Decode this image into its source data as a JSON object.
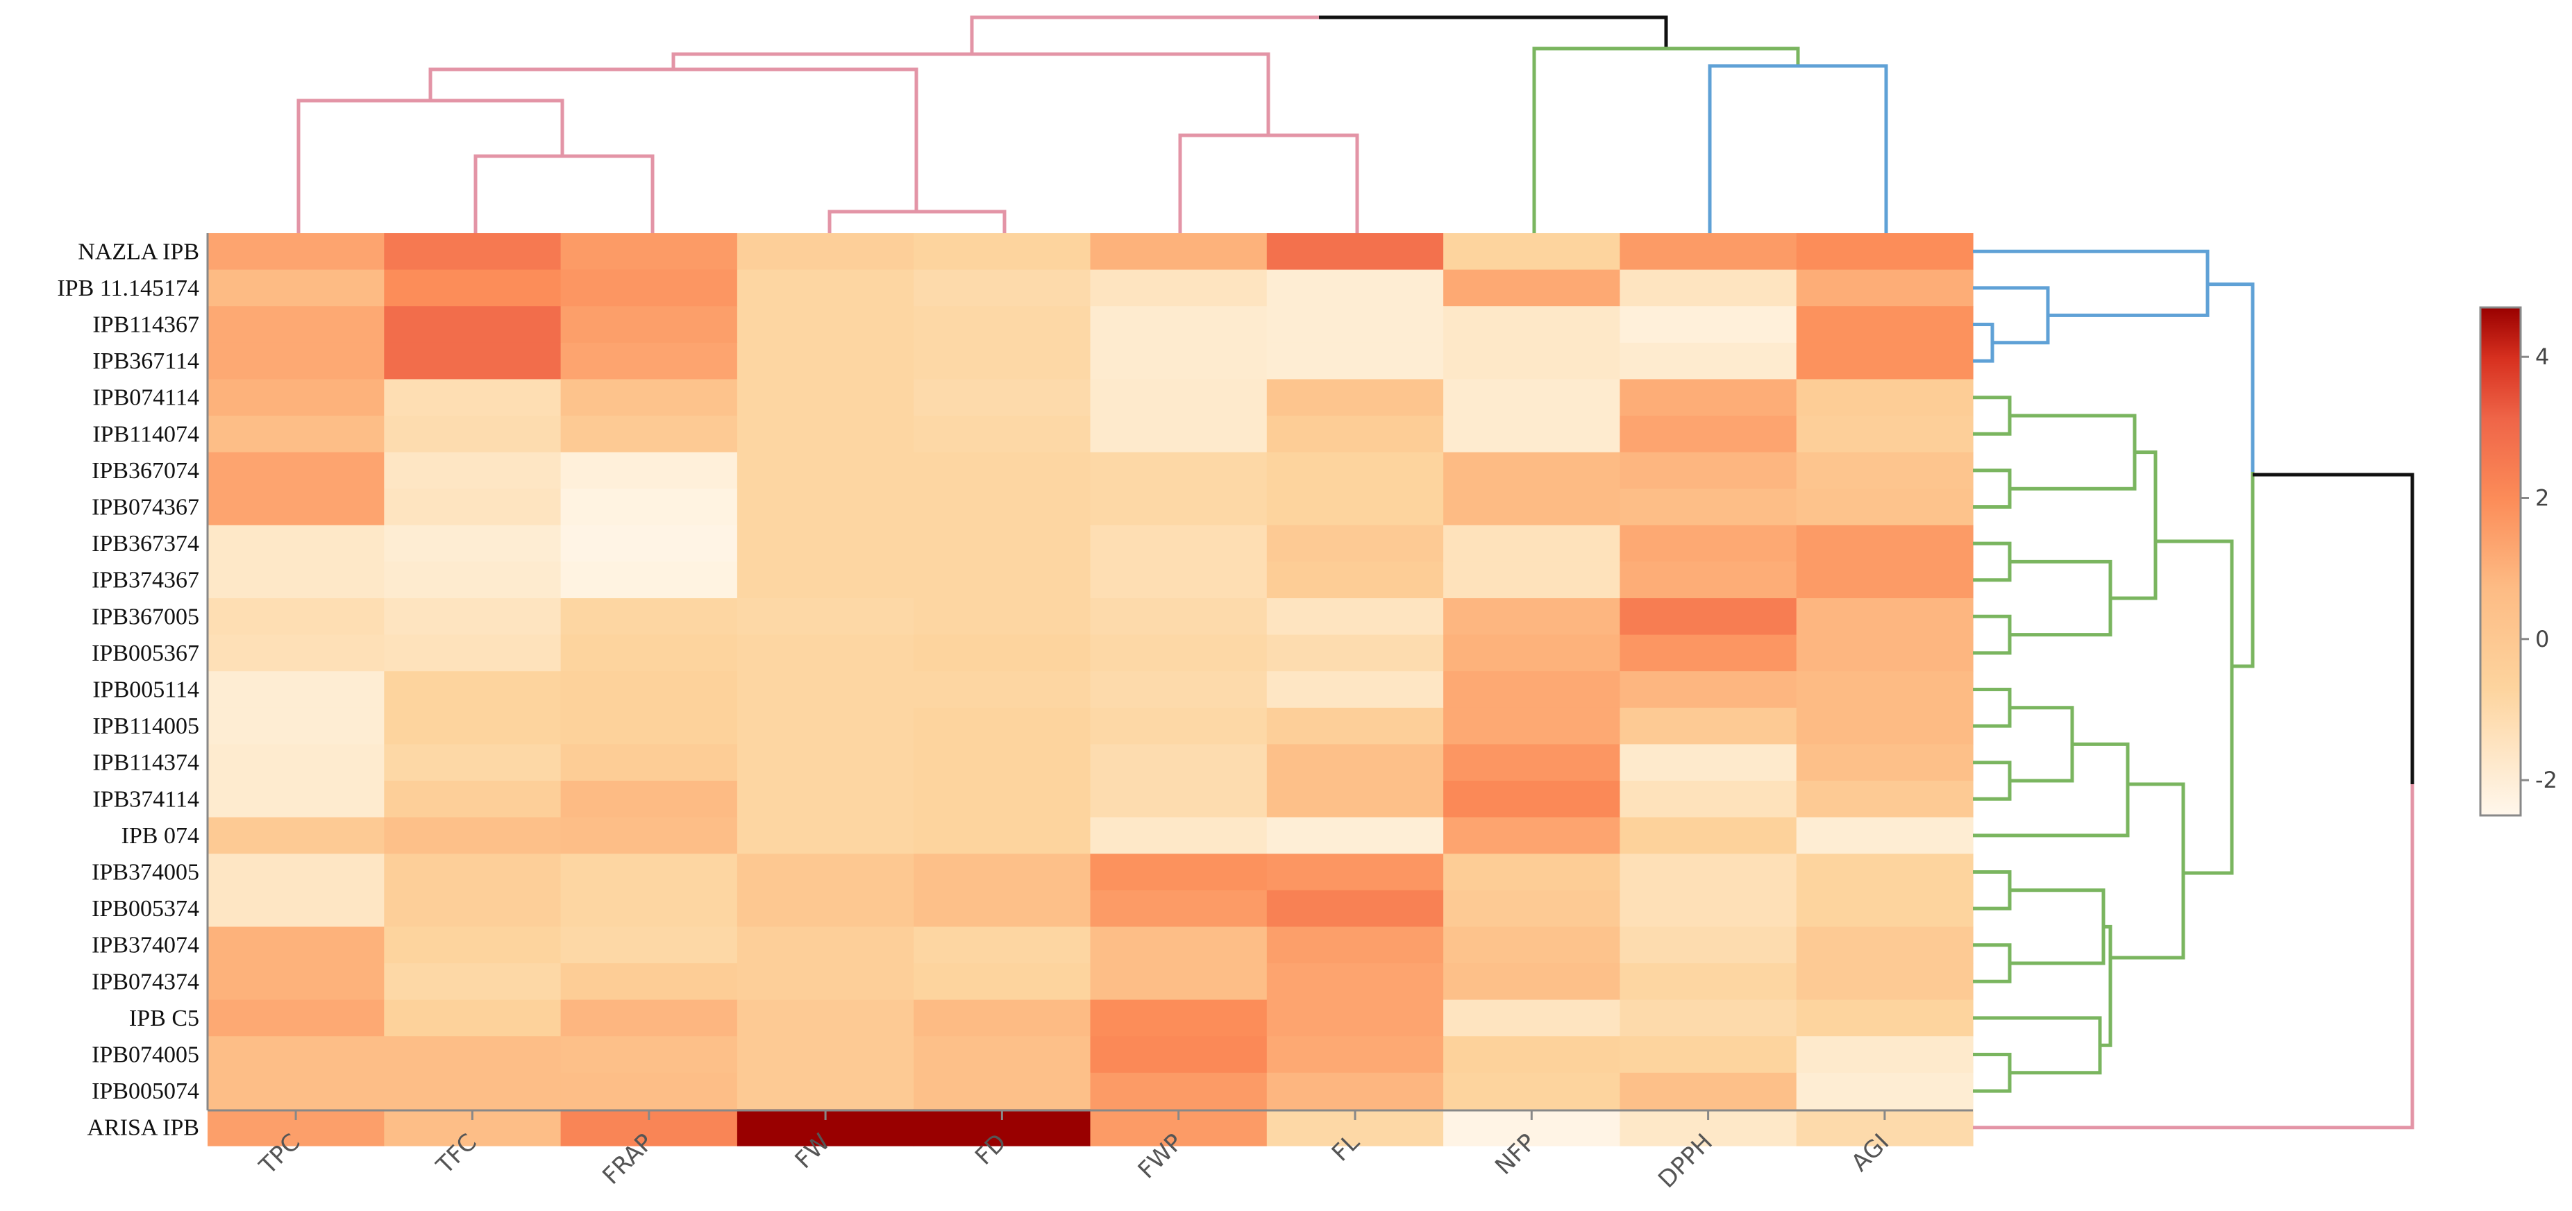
{
  "chart_data": {
    "type": "heatmap",
    "title": "",
    "columns": [
      "TPC",
      "TFC",
      "FRAP",
      "FW",
      "FD",
      "FWP",
      "FL",
      "NFP",
      "DPPH",
      "AGI"
    ],
    "rows": [
      "NAZLA  IPB",
      "IPB 11.145174",
      "IPB114367",
      "IPB367114",
      "IPB074114",
      "IPB114074",
      "IPB367074",
      "IPB074367",
      "IPB367374",
      "IPB374367",
      "IPB367005",
      "IPB005367",
      "IPB005114",
      "IPB114005",
      "IPB114374",
      "IPB374114",
      "IPB 074",
      "IPB374005",
      "IPB005374",
      "IPB374074",
      "IPB074374",
      "IPB C5",
      "IPB074005",
      "IPB005074",
      "ARISA  IPB"
    ],
    "values": [
      [
        1.0,
        2.0,
        1.2,
        -0.3,
        -0.5,
        0.7,
        2.2,
        -0.5,
        1.2,
        1.5
      ],
      [
        0.5,
        1.5,
        1.3,
        -0.6,
        -0.8,
        -1.3,
        -1.8,
        0.9,
        -1.3,
        0.8
      ],
      [
        0.9,
        2.3,
        1.1,
        -0.6,
        -0.7,
        -1.7,
        -1.8,
        -1.5,
        -2.0,
        1.4
      ],
      [
        0.9,
        2.3,
        1.0,
        -0.6,
        -0.7,
        -1.7,
        -1.8,
        -1.5,
        -1.7,
        1.4
      ],
      [
        0.7,
        -1.0,
        0.2,
        -0.6,
        -0.8,
        -1.6,
        0.1,
        -1.7,
        0.8,
        -0.2
      ],
      [
        0.4,
        -0.9,
        -0.1,
        -0.6,
        -0.7,
        -1.6,
        -0.2,
        -1.7,
        1.0,
        -0.3
      ],
      [
        1.0,
        -1.4,
        -2.0,
        -0.6,
        -0.6,
        -0.7,
        -0.5,
        0.5,
        0.6,
        0.1
      ],
      [
        1.0,
        -1.3,
        -2.2,
        -0.6,
        -0.6,
        -0.7,
        -0.5,
        0.5,
        0.4,
        0.2
      ],
      [
        -1.5,
        -1.8,
        -2.3,
        -0.6,
        -0.6,
        -1.0,
        -0.1,
        -1.2,
        0.9,
        1.2
      ],
      [
        -1.5,
        -1.7,
        -2.2,
        -0.6,
        -0.6,
        -1.0,
        -0.2,
        -1.2,
        0.8,
        1.2
      ],
      [
        -1.0,
        -1.3,
        -0.6,
        -0.7,
        -0.6,
        -0.8,
        -1.3,
        0.6,
        1.9,
        0.6
      ],
      [
        -1.1,
        -1.2,
        -0.5,
        -0.6,
        -0.5,
        -0.7,
        -0.9,
        0.7,
        1.3,
        0.6
      ],
      [
        -1.8,
        -0.5,
        -0.4,
        -0.6,
        -0.6,
        -0.8,
        -1.4,
        0.9,
        0.6,
        0.5
      ],
      [
        -1.8,
        -0.5,
        -0.4,
        -0.6,
        -0.5,
        -0.7,
        -0.3,
        0.9,
        -0.1,
        0.5
      ],
      [
        -1.7,
        -0.7,
        -0.2,
        -0.6,
        -0.5,
        -0.9,
        0.3,
        1.3,
        -1.6,
        0.3
      ],
      [
        -1.7,
        -0.3,
        0.5,
        -0.6,
        -0.5,
        -0.9,
        0.3,
        1.6,
        -1.2,
        -0.1
      ],
      [
        -0.1,
        0.3,
        0.4,
        -0.6,
        -0.5,
        -1.5,
        -1.9,
        1.0,
        -0.4,
        -1.8
      ],
      [
        -1.4,
        -0.3,
        -0.6,
        0.0,
        0.3,
        1.4,
        1.3,
        -0.2,
        -1.1,
        -0.5
      ],
      [
        -1.4,
        -0.3,
        -0.6,
        0.0,
        0.3,
        1.2,
        1.8,
        -0.1,
        -1.1,
        -0.5
      ],
      [
        0.7,
        -0.5,
        -0.7,
        -0.3,
        -0.6,
        0.4,
        1.1,
        0.2,
        -0.9,
        -0.1
      ],
      [
        0.7,
        -0.7,
        -0.2,
        -0.3,
        -0.5,
        0.4,
        1.0,
        0.3,
        -0.6,
        -0.1
      ],
      [
        0.9,
        -0.4,
        0.6,
        -0.1,
        0.5,
        1.5,
        1.0,
        -1.3,
        -0.8,
        -0.5
      ],
      [
        0.4,
        0.4,
        0.3,
        -0.1,
        0.3,
        1.6,
        0.9,
        -0.4,
        -0.5,
        -1.6
      ],
      [
        0.4,
        0.4,
        0.4,
        -0.1,
        0.3,
        1.2,
        0.6,
        -0.5,
        0.3,
        -1.8
      ],
      [
        1.1,
        0.4,
        1.7,
        4.7,
        4.7,
        1.2,
        -0.7,
        -2.3,
        -1.5,
        -0.8
      ]
    ],
    "colorbar": {
      "min": -2.5,
      "max": 4.7,
      "ticks": [
        -2,
        0,
        2,
        4
      ],
      "colormap": "OrRd"
    }
  }
}
